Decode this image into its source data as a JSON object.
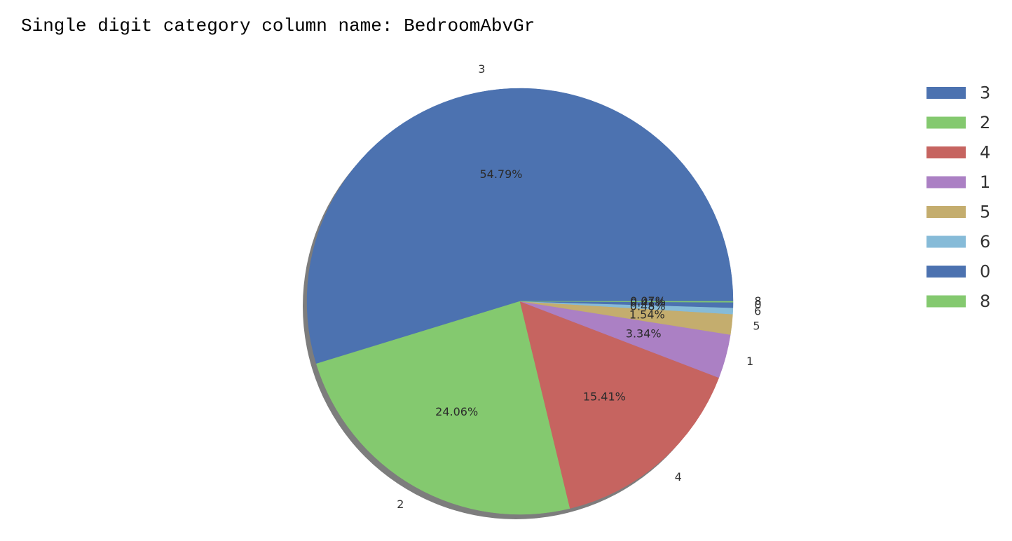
{
  "heading": "Single digit category column name: BedroomAbvGr",
  "chart_data": {
    "type": "pie",
    "title": "",
    "shadow": true,
    "legend_position": "right",
    "start": "0 degrees (3 o'clock), counterclockwise",
    "slices": [
      {
        "label": "3",
        "value": 54.79,
        "pct_label": "54.79%",
        "color": "#4c72b0"
      },
      {
        "label": "2",
        "value": 24.06,
        "pct_label": "24.06%",
        "color": "#84c96f"
      },
      {
        "label": "4",
        "value": 15.41,
        "pct_label": "15.41%",
        "color": "#c66460"
      },
      {
        "label": "1",
        "value": 3.34,
        "pct_label": "3.34%",
        "color": "#ab80c4"
      },
      {
        "label": "5",
        "value": 1.54,
        "pct_label": "1.54%",
        "color": "#c4ad6e"
      },
      {
        "label": "6",
        "value": 0.48,
        "pct_label": "0.48%",
        "color": "#86bbd8"
      },
      {
        "label": "0",
        "value": 0.41,
        "pct_label": "0.41%",
        "color": "#4c72b0"
      },
      {
        "label": "8",
        "value": 0.07,
        "pct_label": "0.07%",
        "color": "#84c96f"
      }
    ]
  }
}
